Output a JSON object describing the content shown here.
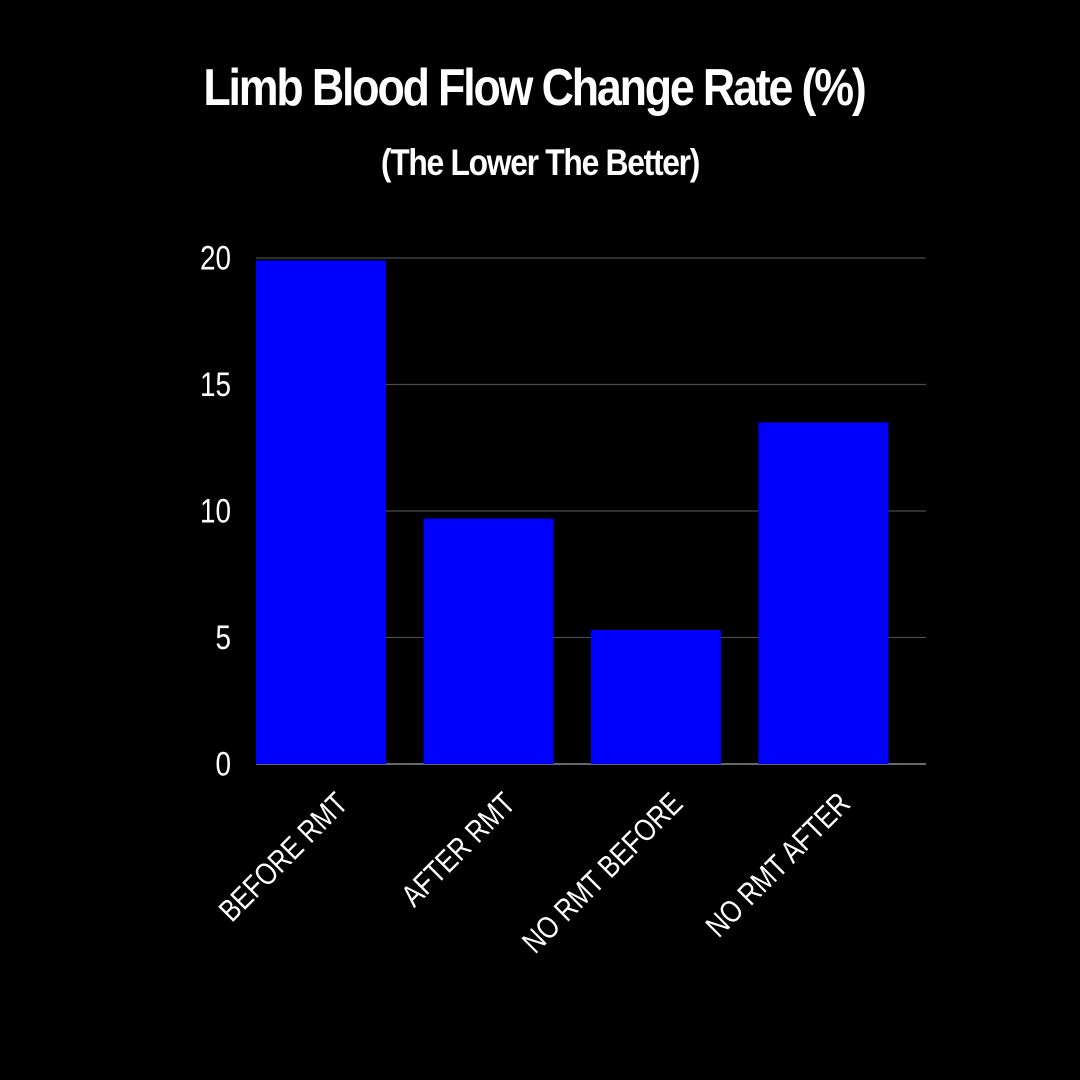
{
  "chart_data": {
    "type": "bar",
    "title": "Limb Blood Flow Change Rate (%)",
    "subtitle": "(The Lower The Better)",
    "categories": [
      "BEFORE RMT",
      "AFTER RMT",
      "NO RMT BEFORE",
      "NO RMT AFTER"
    ],
    "values": [
      19.9,
      9.7,
      5.3,
      13.5
    ],
    "ylim": [
      0,
      20
    ],
    "yticks": [
      0,
      5,
      10,
      15,
      20
    ],
    "grid": true,
    "xlabel": "",
    "ylabel": ""
  },
  "colors": {
    "background": "#000000",
    "bar": "#0000ff",
    "text": "#ffffff",
    "grid": "#4a4a4a",
    "axis": "#8a8a8a"
  }
}
